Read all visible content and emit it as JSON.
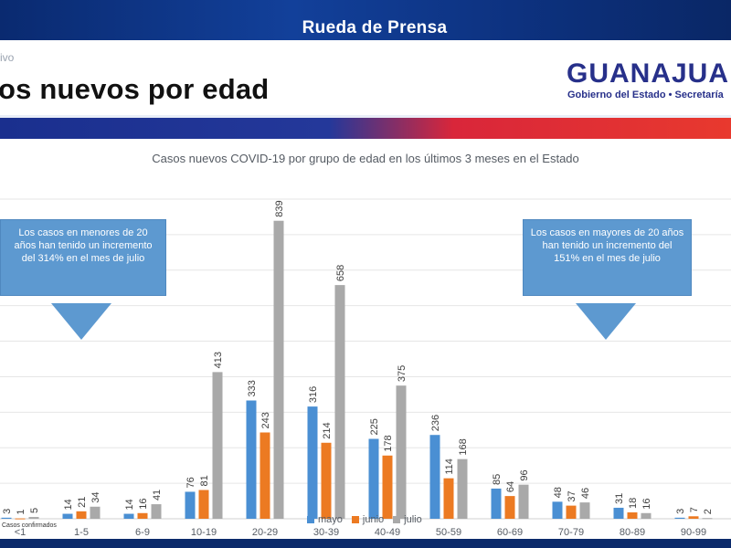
{
  "banner": {
    "title": "Rueda de Prensa"
  },
  "slide": {
    "corner_label": "ivo",
    "heading": "os nuevos por edad",
    "logo_word": "GUANAJUA",
    "logo_subtitle": "Gobierno del Estado • Secretaría"
  },
  "callouts": {
    "left": "Los casos en menores de 20 años han tenido un incremento del 314%  en el mes de julio",
    "right": "Los casos en mayores de 20 años han tenido un incremento del  151%  en el mes de julio"
  },
  "footnote": "Casos confirmados",
  "colors": {
    "mayo": "#4a8fd3",
    "junio": "#ec7a22",
    "julio": "#a9a9a9"
  },
  "chart_data": {
    "type": "bar",
    "title": "Casos nuevos COVID-19 por grupo de edad en los últimos 3 meses en el Estado",
    "categories": [
      "<1",
      "1-5",
      "6-9",
      "10-19",
      "20-29",
      "30-39",
      "40-49",
      "50-59",
      "60-69",
      "70-79",
      "80-89",
      "90-99"
    ],
    "series": [
      {
        "name": "mayo",
        "values": [
          3,
          14,
          14,
          76,
          333,
          316,
          225,
          236,
          85,
          48,
          31,
          3
        ]
      },
      {
        "name": "junio",
        "values": [
          1,
          21,
          16,
          81,
          243,
          214,
          178,
          114,
          64,
          37,
          18,
          7
        ]
      },
      {
        "name": "julio",
        "values": [
          5,
          34,
          41,
          413,
          839,
          658,
          375,
          168,
          96,
          46,
          16,
          2
        ]
      }
    ],
    "ylim": [
      0,
      900
    ],
    "grid": true,
    "legend": "bottom-center"
  }
}
